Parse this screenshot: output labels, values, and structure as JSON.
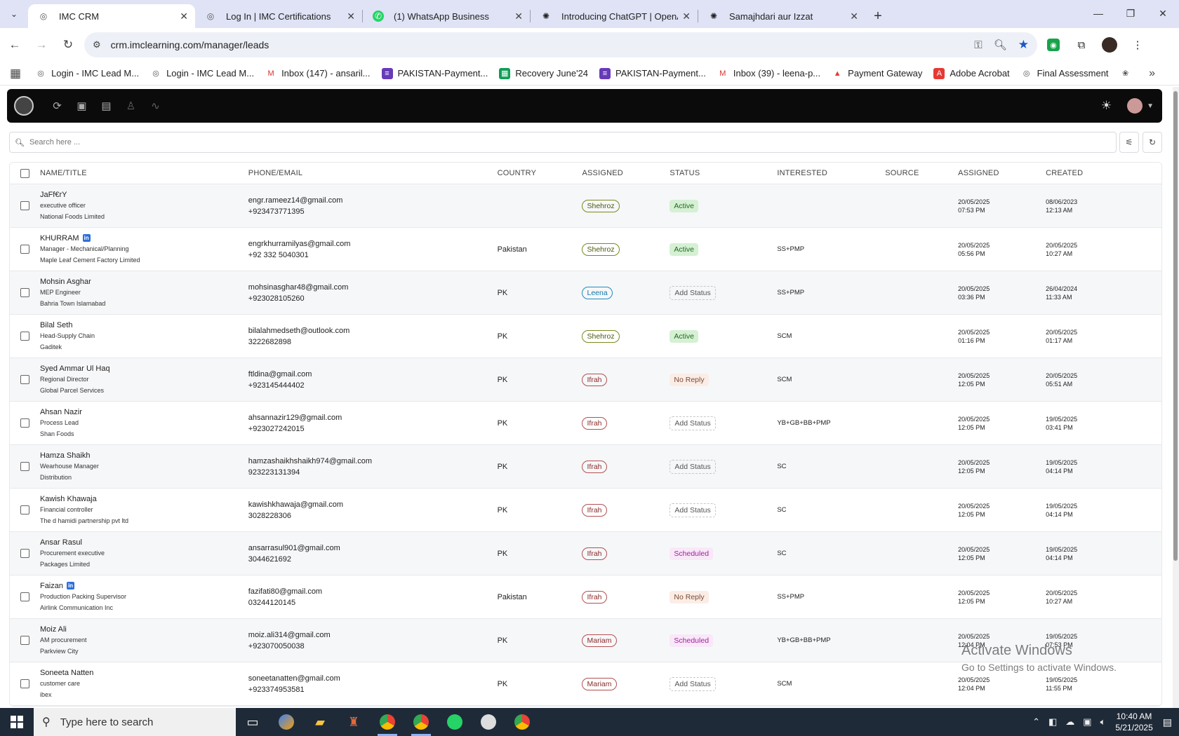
{
  "browser": {
    "tabs": [
      {
        "title": "IMC CRM",
        "icon": "imc-icon",
        "active": true
      },
      {
        "title": "Log In | IMC Certifications",
        "icon": "imc-icon",
        "active": false
      },
      {
        "title": "(1) WhatsApp Business",
        "icon": "whatsapp-icon",
        "active": false
      },
      {
        "title": "Introducing ChatGPT | OpenAI",
        "icon": "openai-icon",
        "active": false
      },
      {
        "title": "Samajhdari aur Izzat",
        "icon": "openai-icon",
        "active": false
      }
    ],
    "url": "crm.imclearning.com/manager/leads",
    "bookmarks": [
      {
        "label": "Login - IMC Lead M...",
        "icon": "imc-icon"
      },
      {
        "label": "Login - IMC Lead M...",
        "icon": "imc-icon"
      },
      {
        "label": "Inbox (147) - ansaril...",
        "icon": "gmail-icon"
      },
      {
        "label": "PAKISTAN-Payment...",
        "icon": "forms-icon"
      },
      {
        "label": "Recovery June'24",
        "icon": "sheets-icon"
      },
      {
        "label": "PAKISTAN-Payment...",
        "icon": "forms-icon"
      },
      {
        "label": "Inbox (39) - leena-p...",
        "icon": "gmail-icon"
      },
      {
        "label": "Payment Gateway",
        "icon": "payment-icon"
      },
      {
        "label": "Adobe Acrobat",
        "icon": "acrobat-icon"
      },
      {
        "label": "Final Assessment",
        "icon": "imc-icon"
      }
    ]
  },
  "search": {
    "placeholder": "Search here ..."
  },
  "table": {
    "headers": {
      "name": "NAME/TITLE",
      "phone": "PHONE/EMAIL",
      "country": "COUNTRY",
      "assigned": "ASSIGNED",
      "status": "STATUS",
      "interested": "INTERESTED",
      "source": "SOURCE",
      "assigned_date": "ASSIGNED",
      "created": "CREATED"
    },
    "rows": [
      {
        "name": "JaFf€rY",
        "linkedin": false,
        "title": "executive officer",
        "company": "National Foods Limited",
        "email": "engr.rameez14@gmail.com",
        "phone": "+923473771395",
        "country": "",
        "assigned": "Shehroz",
        "assigned_color": "green",
        "status": "Active",
        "status_type": "active",
        "interested": "",
        "source": "",
        "assigned_date": "20/05/2025",
        "assigned_time": "07:53 PM",
        "created_date": "08/06/2023",
        "created_time": "12:13 AM",
        "doc": "green"
      },
      {
        "name": "KHURRAM",
        "linkedin": true,
        "title": "Manager - Mechanical/Planning",
        "company": "Maple Leaf Cement Factory Limited",
        "email": "engrkhurramilyas@gmail.com",
        "phone": "+92 332 5040301",
        "country": "Pakistan",
        "assigned": "Shehroz",
        "assigned_color": "green",
        "status": "Active",
        "status_type": "active",
        "interested": "SS+PMP",
        "source": "",
        "assigned_date": "20/05/2025",
        "assigned_time": "05:56 PM",
        "created_date": "20/05/2025",
        "created_time": "10:27 AM",
        "doc": "green"
      },
      {
        "name": "Mohsin Asghar",
        "linkedin": false,
        "title": "MEP Engineer",
        "company": "Bahria Town Islamabad",
        "email": "mohsinasghar48@gmail.com",
        "phone": "+923028105260",
        "country": "PK",
        "assigned": "Leena",
        "assigned_color": "blue",
        "status": "Add Status",
        "status_type": "add",
        "interested": "SS+PMP",
        "source": "",
        "assigned_date": "20/05/2025",
        "assigned_time": "03:36 PM",
        "created_date": "26/04/2024",
        "created_time": "11:33 AM",
        "doc": "green"
      },
      {
        "name": "Bilal Seth",
        "linkedin": false,
        "title": "Head-Supply Chain",
        "company": "Gaditek",
        "email": "bilalahmedseth@outlook.com",
        "phone": "3222682898",
        "country": "PK",
        "assigned": "Shehroz",
        "assigned_color": "green",
        "status": "Active",
        "status_type": "active",
        "interested": "SCM",
        "source": "",
        "assigned_date": "20/05/2025",
        "assigned_time": "01:16 PM",
        "created_date": "20/05/2025",
        "created_time": "01:17 AM",
        "doc": "green"
      },
      {
        "name": "Syed Ammar Ul Haq",
        "linkedin": false,
        "title": "Regional Director",
        "company": "Global Parcel Services",
        "email": "ftldina@gmail.com",
        "phone": "+923145444402",
        "country": "PK",
        "assigned": "Ifrah",
        "assigned_color": "red",
        "status": "No Reply",
        "status_type": "noreply",
        "interested": "SCM",
        "source": "",
        "assigned_date": "20/05/2025",
        "assigned_time": "12:05 PM",
        "created_date": "20/05/2025",
        "created_time": "05:51 AM",
        "doc": "green"
      },
      {
        "name": "Ahsan Nazir",
        "linkedin": false,
        "title": "Process Lead",
        "company": "Shan Foods",
        "email": "ahsannazir129@gmail.com",
        "phone": "+923027242015",
        "country": "PK",
        "assigned": "Ifrah",
        "assigned_color": "red",
        "status": "Add Status",
        "status_type": "add",
        "interested": "YB+GB+BB+PMP",
        "source": "",
        "assigned_date": "20/05/2025",
        "assigned_time": "12:05 PM",
        "created_date": "19/05/2025",
        "created_time": "03:41 PM",
        "doc": "grey"
      },
      {
        "name": "Hamza Shaikh",
        "linkedin": false,
        "title": "Wearhouse Manager",
        "company": "Distribution",
        "email": "hamzashaikhshaikh974@gmail.com",
        "phone": "923223131394",
        "country": "PK",
        "assigned": "Ifrah",
        "assigned_color": "red",
        "status": "Add Status",
        "status_type": "add",
        "interested": "SC",
        "source": "",
        "assigned_date": "20/05/2025",
        "assigned_time": "12:05 PM",
        "created_date": "19/05/2025",
        "created_time": "04:14 PM",
        "doc": "grey"
      },
      {
        "name": "Kawish Khawaja",
        "linkedin": false,
        "title": "Financial controller",
        "company": "The d hamidi partnership pvt ltd",
        "email": "kawishkhawaja@gmail.com",
        "phone": "3028228306",
        "country": "PK",
        "assigned": "Ifrah",
        "assigned_color": "red",
        "status": "Add Status",
        "status_type": "add",
        "interested": "SC",
        "source": "",
        "assigned_date": "20/05/2025",
        "assigned_time": "12:05 PM",
        "created_date": "19/05/2025",
        "created_time": "04:14 PM",
        "doc": "grey"
      },
      {
        "name": "Ansar Rasul",
        "linkedin": false,
        "title": "Procurement executive",
        "company": "Packages Limited",
        "email": "ansarrasul901@gmail.com",
        "phone": "3044621692",
        "country": "PK",
        "assigned": "Ifrah",
        "assigned_color": "red",
        "status": "Scheduled",
        "status_type": "sched",
        "interested": "SC",
        "source": "",
        "assigned_date": "20/05/2025",
        "assigned_time": "12:05 PM",
        "created_date": "19/05/2025",
        "created_time": "04:14 PM",
        "doc": "green"
      },
      {
        "name": "Faizan",
        "linkedin": true,
        "title": "Production Packing Supervisor",
        "company": "Airlink Communication Inc",
        "email": "fazifati80@gmail.com",
        "phone": "03244120145",
        "country": "Pakistan",
        "assigned": "Ifrah",
        "assigned_color": "red",
        "status": "No Reply",
        "status_type": "noreply",
        "interested": "SS+PMP",
        "source": "",
        "assigned_date": "20/05/2025",
        "assigned_time": "12:05 PM",
        "created_date": "20/05/2025",
        "created_time": "10:27 AM",
        "doc": "green"
      },
      {
        "name": "Moiz Ali",
        "linkedin": false,
        "title": "AM procurement",
        "company": "Parkview City",
        "email": "moiz.ali314@gmail.com",
        "phone": "+923070050038",
        "country": "PK",
        "assigned": "Mariam",
        "assigned_color": "red",
        "status": "Scheduled",
        "status_type": "sched",
        "interested": "YB+GB+BB+PMP",
        "source": "",
        "assigned_date": "20/05/2025",
        "assigned_time": "12:04 PM",
        "created_date": "19/05/2025",
        "created_time": "07:53 PM",
        "doc": "green"
      },
      {
        "name": "Soneeta Natten",
        "linkedin": false,
        "title": "customer care",
        "company": "ibex",
        "email": "soneetanatten@gmail.com",
        "phone": "+923374953581",
        "country": "PK",
        "assigned": "Mariam",
        "assigned_color": "red",
        "status": "Add Status",
        "status_type": "add",
        "interested": "SCM",
        "source": "",
        "assigned_date": "20/05/2025",
        "assigned_time": "12:04 PM",
        "created_date": "19/05/2025",
        "created_time": "11:55 PM",
        "doc": "grey"
      }
    ]
  },
  "watermark": {
    "line1": "Activate Windows",
    "line2": "Go to Settings to activate Windows."
  },
  "taskbar": {
    "search_placeholder": "Type here to search",
    "time": "10:40 AM",
    "date": "5/21/2025"
  },
  "colors": {
    "accent": "#1a56c7",
    "appbar": "#0b0b0b",
    "active_status": "#d5f0d3",
    "scheduled_status": "#a0209e"
  }
}
